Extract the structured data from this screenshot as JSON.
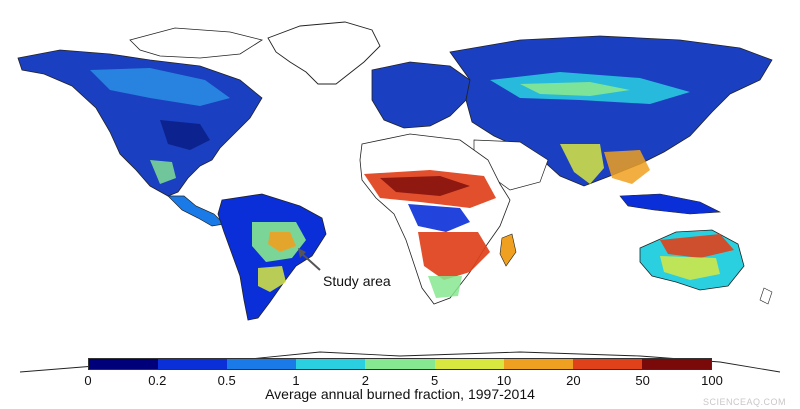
{
  "map": {
    "annotation": "Study area",
    "colorbar": {
      "title": "Average annual burned fraction, 1997-2014",
      "ticks": [
        "0",
        "0.2",
        "0.5",
        "1",
        "2",
        "5",
        "10",
        "20",
        "50",
        "100"
      ],
      "colors": [
        "#00007a",
        "#0a2fd8",
        "#1a7be8",
        "#2ad0e0",
        "#86e890",
        "#d8e840",
        "#f0a020",
        "#e0401a",
        "#7a0a0a"
      ]
    },
    "land_color": "#ffffff",
    "ocean_color": "#ffffff",
    "coastline_color": "#222222"
  },
  "watermark": "SCIENCEAQ.COM"
}
